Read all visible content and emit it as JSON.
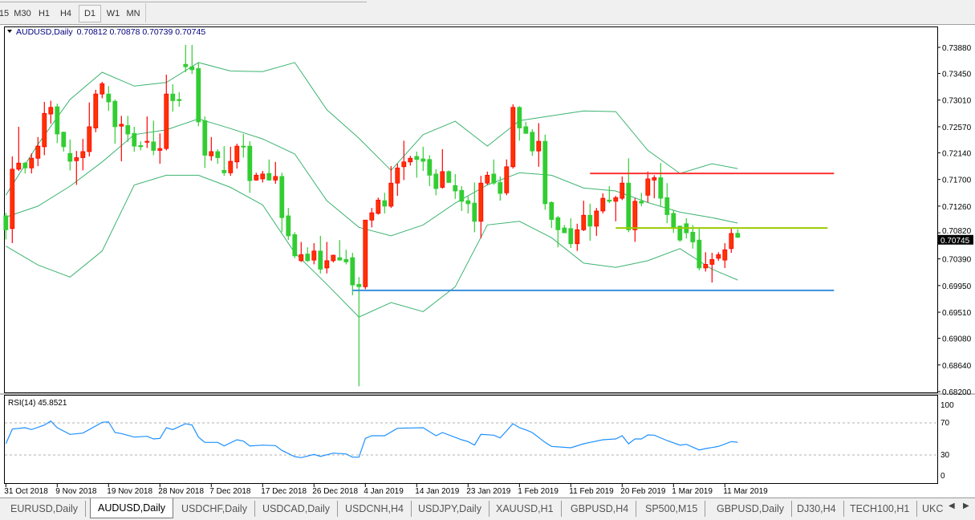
{
  "toolbar": {
    "timeframes": [
      {
        "label": "15",
        "active": false
      },
      {
        "label": "M30",
        "active": false
      },
      {
        "label": "H1",
        "active": false
      },
      {
        "label": "H4",
        "active": false
      },
      {
        "label": "D1",
        "active": true
      },
      {
        "label": "W1",
        "active": false
      },
      {
        "label": "MN",
        "active": false
      }
    ]
  },
  "chart_header": {
    "symbol": "AUDUSD,Daily",
    "ohlc": "0.70812 0.70878 0.70739 0.70745",
    "dropdown_icon": "triangle-down-icon"
  },
  "rsi_header": "RSI(14) 45.8521",
  "current_price_label": "0.70745",
  "tabs": {
    "items": [
      "EURUSD,Daily",
      "AUDUSD,Daily",
      "USDCHF,Daily",
      "USDCAD,Daily",
      "USDCNH,H4",
      "USDJPY,Daily",
      "XAUUSD,H1",
      "GBPUSD,H4",
      "SP500,M15",
      "GBPUSD,Daily",
      "DJ30,H4",
      "TECH100,H1",
      "UKC"
    ],
    "active_index": 1,
    "scroll_left_icon": "arrow-left-icon",
    "scroll_right_icon": "arrow-right-icon"
  },
  "colors": {
    "bull_candle": "#ff3300",
    "bull_wick": "#ff0000",
    "bear_candle": "#32cd32",
    "bollinger": "#3cb371",
    "rsi_line": "#1e90ff",
    "resistance_line": "#ff3333",
    "mid_line": "#99cc00",
    "support_line": "#3a8fdc"
  },
  "chart_data": [
    {
      "type": "candlestick",
      "title": "AUDUSD,Daily",
      "y_ticks": [
        "0.73880",
        "0.73450",
        "0.73010",
        "0.72570",
        "0.72140",
        "0.71700",
        "0.71260",
        "0.70820",
        "0.70390",
        "0.69950",
        "0.69510",
        "0.69080",
        "0.68640",
        "0.68200"
      ],
      "ylim": [
        0.682,
        0.741
      ],
      "x_labels": [
        "31 Oct 2018",
        "9 Nov 2018",
        "19 Nov 2018",
        "28 Nov 2018",
        "7 Dec 2018",
        "17 Dec 2018",
        "26 Dec 2018",
        "4 Jan 2019",
        "14 Jan 2019",
        "23 Jan 2019",
        "1 Feb 2019",
        "11 Feb 2019",
        "20 Feb 2019",
        "1 Mar 2019",
        "11 Mar 2019"
      ],
      "x_label_every": 8,
      "candles_ohlc": [
        [
          0.711,
          0.7115,
          0.7071,
          0.7087
        ],
        [
          0.7089,
          0.7208,
          0.7065,
          0.7187
        ],
        [
          0.7187,
          0.7257,
          0.7184,
          0.7197
        ],
        [
          0.7197,
          0.7199,
          0.718,
          0.7189
        ],
        [
          0.7189,
          0.7213,
          0.718,
          0.7205
        ],
        [
          0.7205,
          0.724,
          0.7192,
          0.7225
        ],
        [
          0.7224,
          0.7298,
          0.721,
          0.7279
        ],
        [
          0.7278,
          0.73,
          0.7262,
          0.7289
        ],
        [
          0.729,
          0.7295,
          0.723,
          0.7245
        ],
        [
          0.7248,
          0.7249,
          0.7216,
          0.7224
        ],
        [
          0.7213,
          0.7236,
          0.7185,
          0.72
        ],
        [
          0.7201,
          0.7217,
          0.7161,
          0.7206
        ],
        [
          0.7206,
          0.7237,
          0.7185,
          0.7216
        ],
        [
          0.7216,
          0.7297,
          0.7208,
          0.7257
        ],
        [
          0.7255,
          0.7318,
          0.7248,
          0.7311
        ],
        [
          0.7311,
          0.7331,
          0.7304,
          0.7328
        ],
        [
          0.7311,
          0.7324,
          0.7283,
          0.7298
        ],
        [
          0.7299,
          0.7302,
          0.7229,
          0.7257
        ],
        [
          0.7258,
          0.7275,
          0.72,
          0.7261
        ],
        [
          0.7259,
          0.7275,
          0.7232,
          0.7245
        ],
        [
          0.7246,
          0.7257,
          0.7216,
          0.7225
        ],
        [
          0.7226,
          0.7233,
          0.7218,
          0.7224
        ],
        [
          0.7232,
          0.7274,
          0.7222,
          0.7233
        ],
        [
          0.7232,
          0.7267,
          0.721,
          0.7218
        ],
        [
          0.7218,
          0.7246,
          0.7196,
          0.7221
        ],
        [
          0.7221,
          0.7343,
          0.7218,
          0.7311
        ],
        [
          0.7311,
          0.7327,
          0.7282,
          0.73
        ],
        [
          0.7302,
          0.7314,
          0.729,
          0.73
        ],
        [
          0.736,
          0.7392,
          0.7347,
          0.7356
        ],
        [
          0.7356,
          0.7392,
          0.7344,
          0.7351
        ],
        [
          0.7353,
          0.7363,
          0.7258,
          0.7265
        ],
        [
          0.7267,
          0.7274,
          0.7189,
          0.721
        ],
        [
          0.7209,
          0.724,
          0.7201,
          0.7216
        ],
        [
          0.7216,
          0.722,
          0.7196,
          0.7206
        ],
        [
          0.7185,
          0.7225,
          0.7176,
          0.7181
        ],
        [
          0.7181,
          0.7224,
          0.7176,
          0.72
        ],
        [
          0.7199,
          0.7229,
          0.7188,
          0.7225
        ],
        [
          0.7225,
          0.7245,
          0.7206,
          0.7224
        ],
        [
          0.7225,
          0.7233,
          0.7148,
          0.7168
        ],
        [
          0.7169,
          0.7181,
          0.7168,
          0.7177
        ],
        [
          0.7171,
          0.7184,
          0.7165,
          0.7179
        ],
        [
          0.718,
          0.7203,
          0.7168,
          0.7169
        ],
        [
          0.7169,
          0.7199,
          0.7163,
          0.7175
        ],
        [
          0.7175,
          0.7181,
          0.7083,
          0.7107
        ],
        [
          0.711,
          0.7123,
          0.707,
          0.7077
        ],
        [
          0.7079,
          0.7083,
          0.704,
          0.7044
        ],
        [
          0.7036,
          0.7067,
          0.7034,
          0.7046
        ],
        [
          0.7047,
          0.7058,
          0.7034,
          0.7036
        ],
        [
          0.7037,
          0.7065,
          0.703,
          0.7052
        ],
        [
          0.7052,
          0.7077,
          0.7015,
          0.7022
        ],
        [
          0.7024,
          0.7067,
          0.7015,
          0.7036
        ],
        [
          0.7036,
          0.7046,
          0.7033,
          0.7045
        ],
        [
          0.7041,
          0.707,
          0.7036,
          0.7037
        ],
        [
          0.7038,
          0.7054,
          0.703,
          0.7034
        ],
        [
          0.7041,
          0.7049,
          0.6979,
          0.6996
        ],
        [
          0.6997,
          0.7009,
          0.6829,
          0.6993
        ],
        [
          0.6993,
          0.7103,
          0.6989,
          0.7103
        ],
        [
          0.7103,
          0.7123,
          0.7091,
          0.7115
        ],
        [
          0.7114,
          0.714,
          0.7112,
          0.7136
        ],
        [
          0.7135,
          0.7148,
          0.7114,
          0.7126
        ],
        [
          0.7126,
          0.7192,
          0.7123,
          0.7164
        ],
        [
          0.7164,
          0.7196,
          0.7143,
          0.7189
        ],
        [
          0.7191,
          0.7234,
          0.7169,
          0.7199
        ],
        [
          0.7199,
          0.7209,
          0.7193,
          0.7205
        ],
        [
          0.7208,
          0.7216,
          0.7173,
          0.7203
        ],
        [
          0.7204,
          0.7224,
          0.7184,
          0.72
        ],
        [
          0.7203,
          0.721,
          0.7159,
          0.7177
        ],
        [
          0.7179,
          0.7187,
          0.7144,
          0.7155
        ],
        [
          0.7157,
          0.722,
          0.7155,
          0.7183
        ],
        [
          0.7183,
          0.7185,
          0.7165,
          0.7165
        ],
        [
          0.716,
          0.7179,
          0.7138,
          0.7151
        ],
        [
          0.7152,
          0.7159,
          0.7118,
          0.7134
        ],
        [
          0.7135,
          0.7142,
          0.7114,
          0.713
        ],
        [
          0.7131,
          0.7165,
          0.7083,
          0.7101
        ],
        [
          0.7101,
          0.7176,
          0.7073,
          0.7164
        ],
        [
          0.7164,
          0.7183,
          0.7161,
          0.7177
        ],
        [
          0.7179,
          0.7203,
          0.7161,
          0.7164
        ],
        [
          0.7165,
          0.7175,
          0.7135,
          0.7147
        ],
        [
          0.7148,
          0.7203,
          0.7144,
          0.7191
        ],
        [
          0.7191,
          0.7294,
          0.7188,
          0.7289
        ],
        [
          0.7289,
          0.7291,
          0.7234,
          0.7255
        ],
        [
          0.7257,
          0.7265,
          0.7246,
          0.7246
        ],
        [
          0.7248,
          0.7253,
          0.7209,
          0.7217
        ],
        [
          0.7217,
          0.7263,
          0.7191,
          0.7233
        ],
        [
          0.7233,
          0.7244,
          0.712,
          0.713
        ],
        [
          0.7132,
          0.7134,
          0.709,
          0.7104
        ],
        [
          0.7107,
          0.711,
          0.7058,
          0.7087
        ],
        [
          0.709,
          0.7095,
          0.7082,
          0.7082
        ],
        [
          0.7089,
          0.7106,
          0.7057,
          0.7064
        ],
        [
          0.7064,
          0.7097,
          0.7052,
          0.7087
        ],
        [
          0.7087,
          0.7135,
          0.7085,
          0.7111
        ],
        [
          0.7111,
          0.713,
          0.7069,
          0.7093
        ],
        [
          0.7093,
          0.7123,
          0.7077,
          0.7118
        ],
        [
          0.7118,
          0.7147,
          0.7114,
          0.7139
        ],
        [
          0.7136,
          0.7159,
          0.7131,
          0.7134
        ],
        [
          0.7134,
          0.7143,
          0.7101,
          0.714
        ],
        [
          0.7139,
          0.7175,
          0.7136,
          0.7164
        ],
        [
          0.7164,
          0.7205,
          0.7083,
          0.7087
        ],
        [
          0.7087,
          0.7139,
          0.7067,
          0.7134
        ],
        [
          0.7134,
          0.7148,
          0.7126,
          0.7131
        ],
        [
          0.7144,
          0.7183,
          0.7132,
          0.7171
        ],
        [
          0.7169,
          0.7177,
          0.7139,
          0.7173
        ],
        [
          0.7173,
          0.7197,
          0.7126,
          0.7139
        ],
        [
          0.714,
          0.7164,
          0.7098,
          0.7112
        ],
        [
          0.7114,
          0.712,
          0.7082,
          0.709
        ],
        [
          0.7093,
          0.7094,
          0.7067,
          0.707
        ],
        [
          0.7097,
          0.7106,
          0.7073,
          0.7082
        ],
        [
          0.7083,
          0.7095,
          0.7056,
          0.7067
        ],
        [
          0.707,
          0.709,
          0.702,
          0.7024
        ],
        [
          0.7024,
          0.705,
          0.7018,
          0.703
        ],
        [
          0.703,
          0.7049,
          0.7,
          0.7038
        ],
        [
          0.704,
          0.705,
          0.7036,
          0.7046
        ],
        [
          0.7037,
          0.7065,
          0.7024,
          0.7054
        ],
        [
          0.7056,
          0.7089,
          0.7049,
          0.7081
        ],
        [
          0.70812,
          0.70878,
          0.70739,
          0.70745
        ]
      ],
      "bollinger_sample_every": 5,
      "bollinger_upper": [
        0.7144,
        0.7228,
        0.7302,
        0.7347,
        0.7324,
        0.733,
        0.7363,
        0.7349,
        0.7348,
        0.7363,
        0.7285,
        0.7238,
        0.7185,
        0.7244,
        0.7266,
        0.7225,
        0.7267,
        0.7275,
        0.7283,
        0.7282,
        0.7218,
        0.718,
        0.7196,
        0.7188
      ],
      "bollinger_middle": [
        0.7108,
        0.7126,
        0.7159,
        0.7199,
        0.7244,
        0.7252,
        0.727,
        0.7254,
        0.7237,
        0.7212,
        0.7135,
        0.7091,
        0.7077,
        0.7095,
        0.7131,
        0.7161,
        0.7181,
        0.7177,
        0.7156,
        0.7151,
        0.7132,
        0.7116,
        0.7107,
        0.7098
      ],
      "bollinger_lower": [
        0.706,
        0.7029,
        0.7009,
        0.7052,
        0.7161,
        0.7177,
        0.7177,
        0.7157,
        0.7128,
        0.7049,
        0.6997,
        0.6943,
        0.6967,
        0.6952,
        0.6993,
        0.7095,
        0.7101,
        0.7074,
        0.7032,
        0.7025,
        0.7036,
        0.7056,
        0.7022,
        0.7004
      ],
      "horizontal_lines": [
        {
          "price": 0.718,
          "from_candle": 92,
          "to_candle": 130,
          "color": "resistance_line"
        },
        {
          "price": 0.709,
          "from_candle": 96,
          "to_candle": 129,
          "color": "mid_line"
        },
        {
          "price": 0.6987,
          "from_candle": 55,
          "to_candle": 130,
          "color": "support_line"
        }
      ],
      "current_price": 0.70745
    },
    {
      "type": "line",
      "title": "RSI(14) 45.8521",
      "ylim": [
        0,
        100
      ],
      "y_ticks": [
        "100",
        "70",
        "30",
        "0"
      ],
      "levels": [
        70,
        30
      ],
      "points_candle_value": [
        [
          1,
          44.0
        ],
        [
          2,
          62.3
        ],
        [
          4,
          64.0
        ],
        [
          5,
          61.7
        ],
        [
          7,
          67.3
        ],
        [
          8,
          72.3
        ],
        [
          9,
          64.0
        ],
        [
          11,
          55.7
        ],
        [
          13,
          57.3
        ],
        [
          16,
          70.7
        ],
        [
          17,
          71.3
        ],
        [
          18,
          58.0
        ],
        [
          19,
          56.7
        ],
        [
          21,
          52.3
        ],
        [
          23,
          53.3
        ],
        [
          24,
          50.0
        ],
        [
          25,
          50.7
        ],
        [
          26,
          64.0
        ],
        [
          27,
          61.7
        ],
        [
          29,
          69.0
        ],
        [
          30,
          67.3
        ],
        [
          31,
          52.3
        ],
        [
          32,
          45.7
        ],
        [
          34,
          45.7
        ],
        [
          35,
          41.3
        ],
        [
          37,
          49.0
        ],
        [
          38,
          47.3
        ],
        [
          39,
          41.3
        ],
        [
          41,
          42.3
        ],
        [
          43,
          41.7
        ],
        [
          44,
          35.7
        ],
        [
          46,
          28.0
        ],
        [
          47,
          26.7
        ],
        [
          49,
          30.7
        ],
        [
          50,
          28.3
        ],
        [
          52,
          32.3
        ],
        [
          54,
          31.3
        ],
        [
          55,
          27.3
        ],
        [
          56,
          27.3
        ],
        [
          57,
          50.7
        ],
        [
          58,
          54.0
        ],
        [
          60,
          54.0
        ],
        [
          62,
          63.3
        ],
        [
          66,
          64.0
        ],
        [
          68,
          54.0
        ],
        [
          69,
          58.0
        ],
        [
          72,
          49.0
        ],
        [
          73,
          46.7
        ],
        [
          74,
          42.3
        ],
        [
          75,
          55.7
        ],
        [
          77,
          54.7
        ],
        [
          78,
          51.3
        ],
        [
          80,
          69.0
        ],
        [
          81,
          64.0
        ],
        [
          82,
          61.3
        ],
        [
          83,
          58.0
        ],
        [
          85,
          45.7
        ],
        [
          86,
          40.7
        ],
        [
          89,
          39.0
        ],
        [
          91,
          44.0
        ],
        [
          92,
          45.7
        ],
        [
          94,
          49.0
        ],
        [
          96,
          50.0
        ],
        [
          97,
          54.0
        ],
        [
          98,
          44.0
        ],
        [
          99,
          50.0
        ],
        [
          100,
          50.0
        ],
        [
          101,
          55.0
        ],
        [
          102,
          54.7
        ],
        [
          104,
          48.0
        ],
        [
          106,
          42.3
        ],
        [
          107,
          43.3
        ],
        [
          109,
          36.3
        ],
        [
          110,
          38.0
        ],
        [
          112,
          40.7
        ],
        [
          114,
          46.7
        ],
        [
          115,
          45.85
        ]
      ]
    }
  ]
}
